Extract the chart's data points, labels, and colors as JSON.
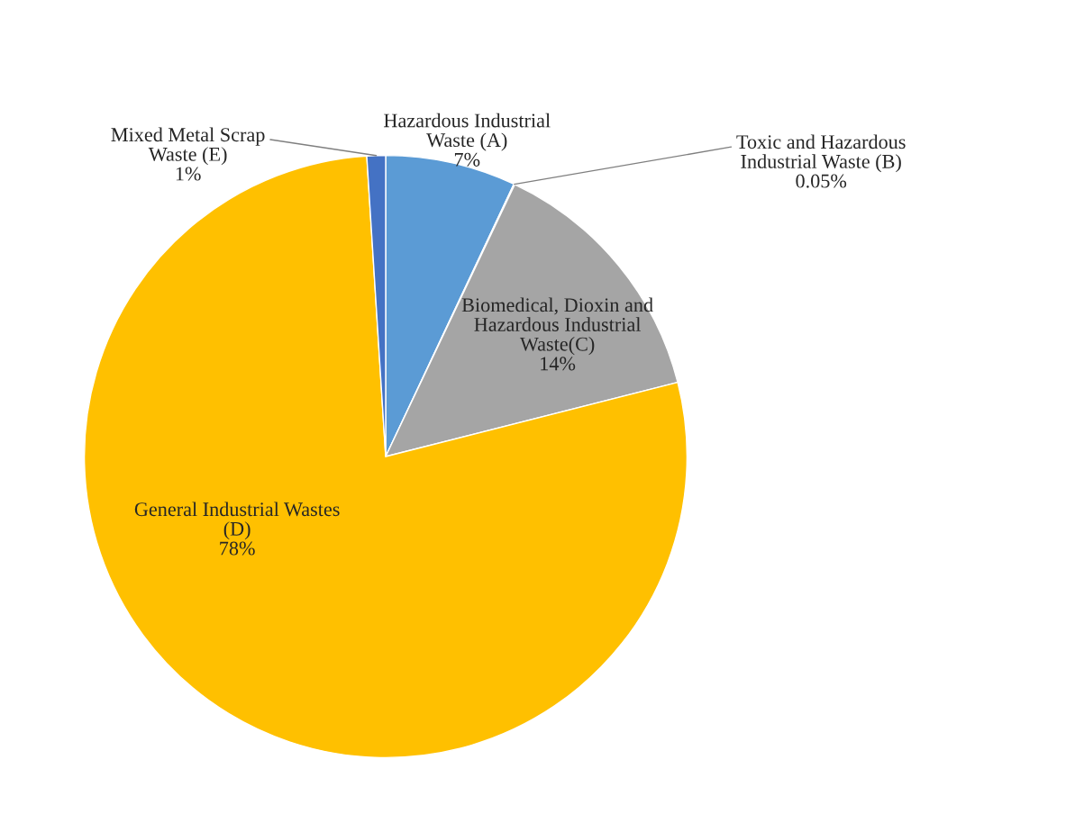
{
  "chart_data": {
    "type": "pie",
    "categories": [
      "Hazardous Industrial\nWaste (A)",
      "Toxic and Hazardous\nIndustrial Waste (B)",
      "Biomedical, Dioxin and\nHazardous Industrial\nWaste(C)",
      "General Industrial Wastes\n(D)",
      "Mixed Metal Scrap\nWaste (E)"
    ],
    "values": [
      7,
      0.05,
      14,
      78,
      1
    ],
    "value_labels": [
      "7%",
      "0.05%",
      "14%",
      "78%",
      "1%"
    ],
    "colors": [
      "#5b9bd5",
      "#ed7d31",
      "#a5a5a5",
      "#ffc000",
      "#4472c4"
    ]
  }
}
